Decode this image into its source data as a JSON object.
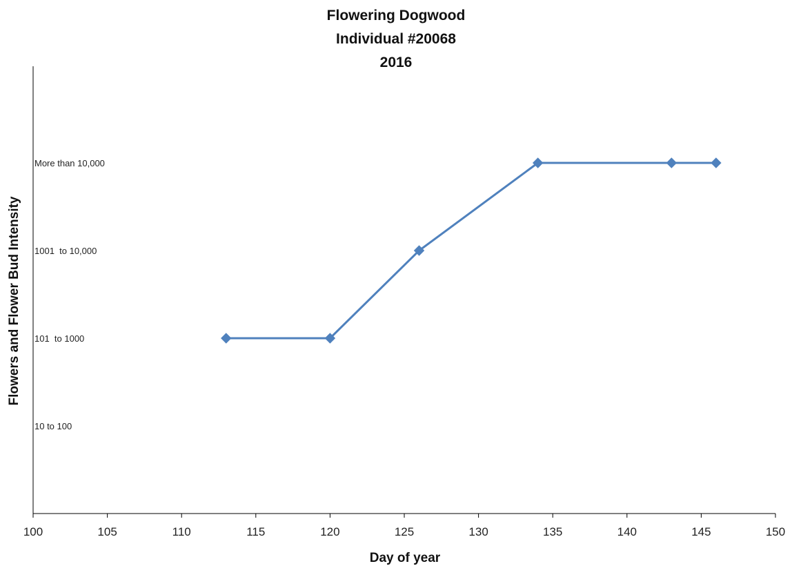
{
  "chart_data": {
    "type": "line",
    "title_lines": [
      "Flowering Dogwood",
      "Individual #20068",
      "2016"
    ],
    "xlabel": "Day of year",
    "ylabel": "Flowers and Flower Bud Intensity",
    "xlim": [
      100,
      150
    ],
    "x_ticks": [
      100,
      105,
      110,
      115,
      120,
      125,
      130,
      135,
      140,
      145,
      150
    ],
    "y_categories": [
      "10 to 100",
      "101  to 1000",
      "1001  to 10,000",
      "More than 10,000"
    ],
    "grid": false,
    "legend": "none",
    "series": [
      {
        "points": [
          {
            "x": 113,
            "y": "101  to 1000"
          },
          {
            "x": 120,
            "y": "101  to 1000"
          },
          {
            "x": 126,
            "y": "1001  to 10,000"
          },
          {
            "x": 134,
            "y": "More than 10,000"
          },
          {
            "x": 143,
            "y": "More than 10,000"
          },
          {
            "x": 146,
            "y": "More than 10,000"
          }
        ],
        "color": "#4f81bd"
      }
    ]
  }
}
